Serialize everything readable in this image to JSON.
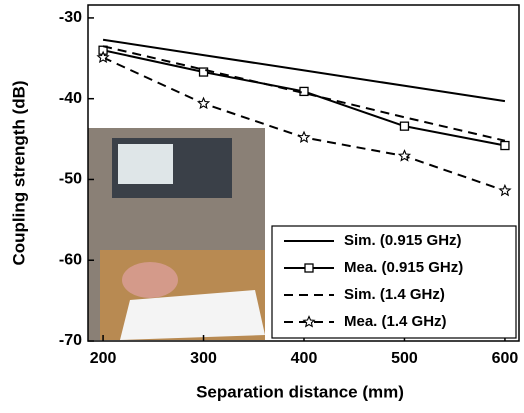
{
  "chart_data": {
    "type": "line",
    "x_label": "Separation distance (mm)",
    "y_label": "Coupling strength (dB)",
    "x": [
      200,
      300,
      400,
      500,
      600
    ],
    "series": [
      {
        "name": "Sim. (0.915 GHz)",
        "color": "#000000",
        "dash": false,
        "marker": null,
        "values": [
          -32.7,
          -34.6,
          -36.5,
          -38.4,
          -40.3
        ]
      },
      {
        "name": "Mea. (0.915 GHz)",
        "color": "#000000",
        "dash": false,
        "marker": "square",
        "values": [
          -34.0,
          -36.7,
          -39.1,
          -43.4,
          -45.8
        ]
      },
      {
        "name": "Sim. (1.4 GHz)",
        "color": "#000000",
        "dash": true,
        "marker": null,
        "values": [
          -33.5,
          -36.4,
          -39.3,
          -42.3,
          -45.2
        ]
      },
      {
        "name": "Mea. (1.4 GHz)",
        "color": "#000000",
        "dash": true,
        "marker": "star",
        "values": [
          -34.9,
          -40.6,
          -44.8,
          -47.1,
          -51.4
        ]
      }
    ],
    "xlim": [
      185,
      614
    ],
    "ylim": [
      -70,
      -28.4
    ],
    "xticks": [
      200,
      300,
      400,
      500,
      600
    ],
    "yticks": [
      -70,
      -60,
      -50,
      -40,
      -30
    ],
    "legend": "lower right"
  }
}
